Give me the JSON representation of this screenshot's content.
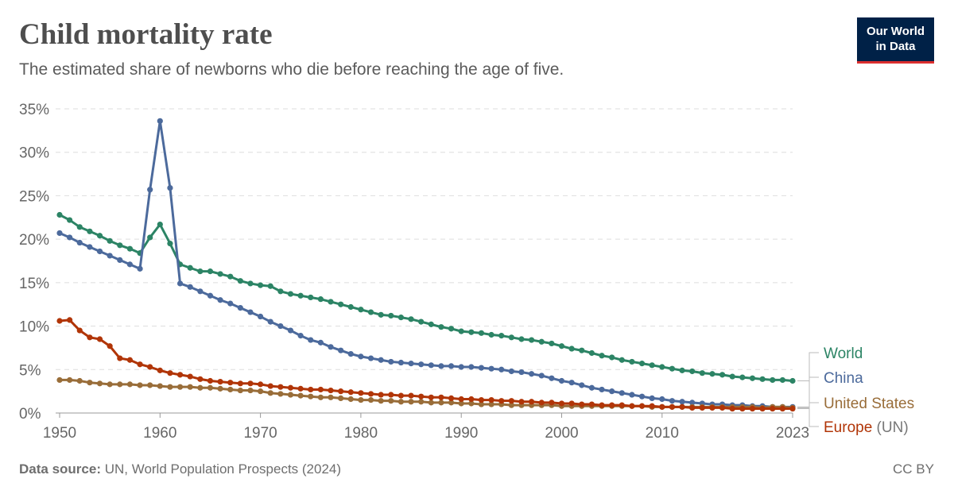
{
  "header": {
    "title": "Child mortality rate",
    "subtitle": "The estimated share of newborns who die before reaching the age of five.",
    "logo_line1": "Our World",
    "logo_line2": "in Data"
  },
  "footer": {
    "source_label": "Data source:",
    "source_text": " UN, World Population Prospects (2024)",
    "license": "CC BY"
  },
  "chart_data": {
    "type": "line",
    "title": "Child mortality rate",
    "x_start": 1950,
    "xlim": [
      1950,
      2023
    ],
    "ylim": [
      0,
      35
    ],
    "x_ticks": [
      "1950",
      "1960",
      "1970",
      "1980",
      "1990",
      "2000",
      "2010",
      "2023"
    ],
    "y_ticks": [
      "0%",
      "5%",
      "10%",
      "15%",
      "20%",
      "25%",
      "30%",
      "35%"
    ],
    "grid": true,
    "legend": "right (line-end labels)",
    "series": [
      {
        "name": "World",
        "color": "#2c8465",
        "values": [
          22.8,
          22.2,
          21.4,
          20.9,
          20.4,
          19.8,
          19.3,
          18.9,
          18.4,
          20.2,
          21.7,
          19.5,
          17.1,
          16.7,
          16.3,
          16.3,
          16.0,
          15.7,
          15.2,
          14.9,
          14.7,
          14.6,
          14.0,
          13.7,
          13.5,
          13.3,
          13.1,
          12.8,
          12.5,
          12.2,
          11.9,
          11.6,
          11.3,
          11.2,
          11.0,
          10.8,
          10.5,
          10.2,
          9.9,
          9.7,
          9.4,
          9.3,
          9.2,
          9.0,
          8.9,
          8.7,
          8.5,
          8.4,
          8.2,
          8.0,
          7.7,
          7.4,
          7.2,
          6.9,
          6.6,
          6.4,
          6.1,
          5.9,
          5.7,
          5.5,
          5.3,
          5.1,
          4.9,
          4.8,
          4.6,
          4.5,
          4.4,
          4.2,
          4.1,
          4.0,
          3.9,
          3.8,
          3.8,
          3.7
        ]
      },
      {
        "name": "China",
        "color": "#4c6a9c",
        "values": [
          20.7,
          20.2,
          19.6,
          19.1,
          18.6,
          18.1,
          17.6,
          17.1,
          16.6,
          25.7,
          33.6,
          25.9,
          14.9,
          14.5,
          14.0,
          13.5,
          13.0,
          12.6,
          12.1,
          11.6,
          11.1,
          10.5,
          10.0,
          9.5,
          8.9,
          8.4,
          8.1,
          7.6,
          7.2,
          6.8,
          6.5,
          6.3,
          6.1,
          5.9,
          5.8,
          5.7,
          5.6,
          5.5,
          5.4,
          5.4,
          5.3,
          5.3,
          5.2,
          5.1,
          5.0,
          4.8,
          4.7,
          4.5,
          4.3,
          4.0,
          3.7,
          3.5,
          3.2,
          2.9,
          2.7,
          2.5,
          2.3,
          2.1,
          1.9,
          1.7,
          1.6,
          1.4,
          1.3,
          1.2,
          1.1,
          1.0,
          1.0,
          0.9,
          0.9,
          0.8,
          0.8,
          0.7,
          0.7,
          0.7
        ]
      },
      {
        "name": "United States",
        "color": "#996d39",
        "values": [
          3.8,
          3.8,
          3.7,
          3.5,
          3.4,
          3.3,
          3.3,
          3.3,
          3.2,
          3.2,
          3.1,
          3.0,
          3.0,
          3.0,
          2.9,
          2.9,
          2.8,
          2.7,
          2.6,
          2.6,
          2.5,
          2.3,
          2.2,
          2.1,
          2.0,
          1.9,
          1.8,
          1.8,
          1.7,
          1.6,
          1.5,
          1.5,
          1.4,
          1.4,
          1.3,
          1.3,
          1.3,
          1.2,
          1.2,
          1.2,
          1.1,
          1.1,
          1.0,
          1.0,
          1.0,
          0.9,
          0.9,
          0.9,
          0.9,
          0.9,
          0.8,
          0.8,
          0.8,
          0.8,
          0.8,
          0.8,
          0.8,
          0.8,
          0.8,
          0.7,
          0.7,
          0.7,
          0.7,
          0.7,
          0.7,
          0.7,
          0.7,
          0.7,
          0.7,
          0.7,
          0.6,
          0.7,
          0.7,
          0.6
        ]
      },
      {
        "name": "Europe",
        "name_suffix": " (UN)",
        "color": "#b13507",
        "values": [
          10.6,
          10.7,
          9.5,
          8.7,
          8.5,
          7.7,
          6.3,
          6.1,
          5.6,
          5.3,
          4.9,
          4.6,
          4.4,
          4.2,
          3.9,
          3.7,
          3.6,
          3.5,
          3.4,
          3.4,
          3.3,
          3.1,
          3.0,
          2.9,
          2.8,
          2.7,
          2.7,
          2.6,
          2.5,
          2.4,
          2.3,
          2.2,
          2.1,
          2.1,
          2.0,
          2.0,
          1.9,
          1.8,
          1.8,
          1.7,
          1.6,
          1.6,
          1.5,
          1.5,
          1.4,
          1.4,
          1.3,
          1.3,
          1.2,
          1.2,
          1.1,
          1.1,
          1.0,
          1.0,
          0.9,
          0.9,
          0.9,
          0.8,
          0.8,
          0.8,
          0.7,
          0.7,
          0.7,
          0.6,
          0.6,
          0.6,
          0.6,
          0.5,
          0.5,
          0.5,
          0.5,
          0.5,
          0.5,
          0.5
        ]
      }
    ]
  }
}
